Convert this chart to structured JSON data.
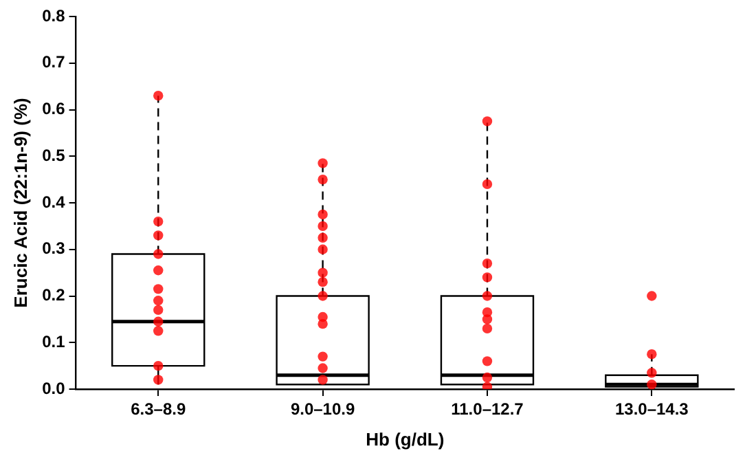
{
  "chart_data": {
    "type": "box",
    "xlabel": "Hb (g/dL)",
    "ylabel": "Erucic Acid (22:1n-9) (%)",
    "categories": [
      "6.3–8.9",
      "9.0–10.9",
      "11.0–12.7",
      "13.0–14.3"
    ],
    "boxes": [
      {
        "low": 0.01,
        "q1": 0.05,
        "median": 0.145,
        "q3": 0.29,
        "high": 0.63
      },
      {
        "low": 0.01,
        "q1": 0.01,
        "median": 0.03,
        "q3": 0.2,
        "high": 0.485
      },
      {
        "low": 0.01,
        "q1": 0.01,
        "median": 0.03,
        "q3": 0.2,
        "high": 0.575
      },
      {
        "low": 0.005,
        "q1": 0.005,
        "median": 0.01,
        "q3": 0.03,
        "high": 0.075
      }
    ],
    "series": [
      {
        "type": "scatter",
        "color": "#ff0000",
        "x": [
          "6.3–8.9",
          "6.3–8.9",
          "6.3–8.9",
          "6.3–8.9",
          "6.3–8.9",
          "6.3–8.9",
          "6.3–8.9",
          "6.3–8.9",
          "6.3–8.9",
          "6.3–8.9",
          "6.3–8.9",
          "6.3–8.9",
          "9.0–10.9",
          "9.0–10.9",
          "9.0–10.9",
          "9.0–10.9",
          "9.0–10.9",
          "9.0–10.9",
          "9.0–10.9",
          "9.0–10.9",
          "9.0–10.9",
          "9.0–10.9",
          "9.0–10.9",
          "9.0–10.9",
          "9.0–10.9",
          "9.0–10.9",
          "11.0–12.7",
          "11.0–12.7",
          "11.0–12.7",
          "11.0–12.7",
          "11.0–12.7",
          "11.0–12.7",
          "11.0–12.7",
          "11.0–12.7",
          "11.0–12.7",
          "11.0–12.7",
          "11.0–12.7",
          "13.0–14.3",
          "13.0–14.3",
          "13.0–14.3",
          "13.0–14.3"
        ],
        "values": [
          0.63,
          0.36,
          0.33,
          0.29,
          0.255,
          0.215,
          0.19,
          0.17,
          0.145,
          0.125,
          0.05,
          0.02,
          0.485,
          0.45,
          0.375,
          0.35,
          0.325,
          0.3,
          0.25,
          0.23,
          0.2,
          0.155,
          0.14,
          0.07,
          0.045,
          0.02,
          0.575,
          0.44,
          0.27,
          0.24,
          0.2,
          0.165,
          0.15,
          0.13,
          0.06,
          0.025,
          0.005,
          0.2,
          0.075,
          0.035,
          0.01
        ]
      }
    ],
    "marker": "circle",
    "ylim": [
      0,
      0.8
    ],
    "yticks": [
      {
        "value": 0,
        "label": "0.0"
      },
      {
        "value": 0.1,
        "label": "0.1"
      },
      {
        "value": 0.2,
        "label": "0.2"
      },
      {
        "value": 0.3,
        "label": "0.3"
      },
      {
        "value": 0.4,
        "label": "0.4"
      },
      {
        "value": 0.5,
        "label": "0.5"
      },
      {
        "value": 0.6,
        "label": "0.6"
      },
      {
        "value": 0.7,
        "label": "0.7"
      },
      {
        "value": 0.8,
        "label": "0.8"
      }
    ],
    "grid": false,
    "legend": false
  }
}
